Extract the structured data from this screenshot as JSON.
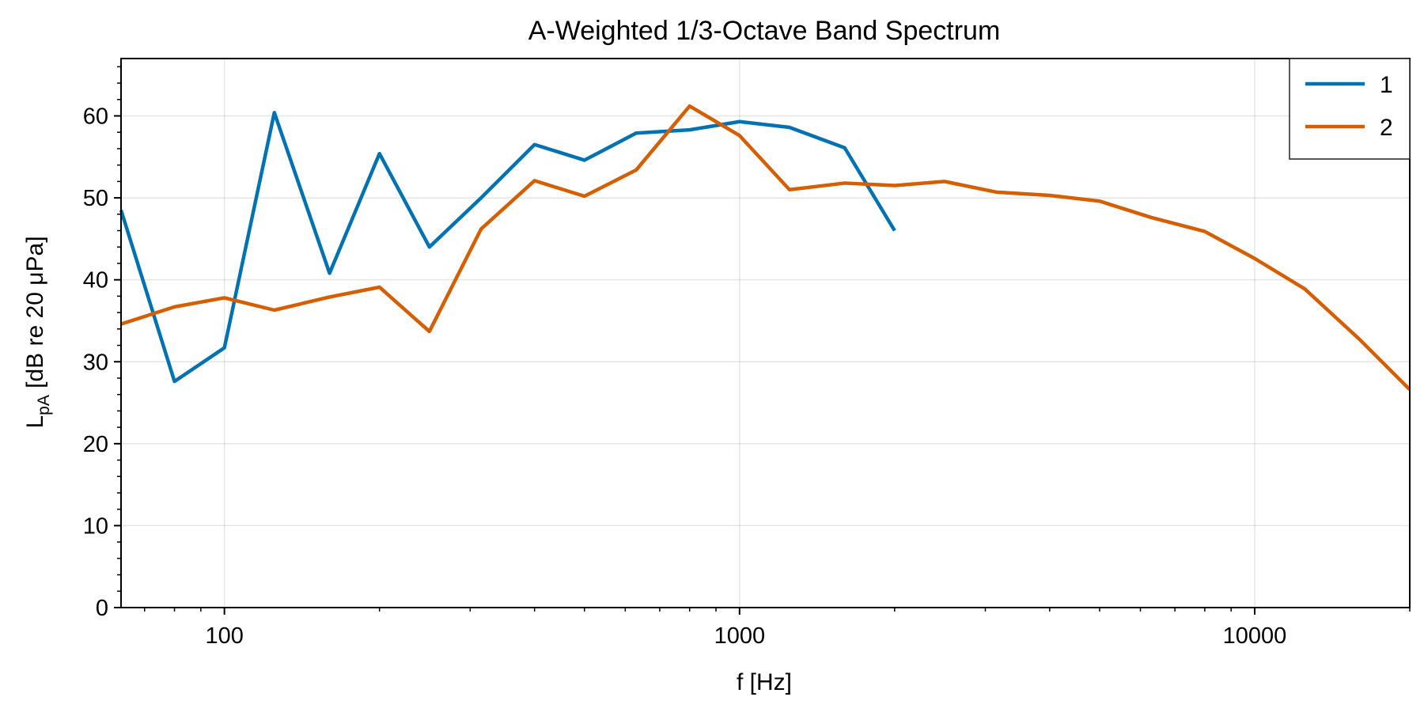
{
  "chart_data": {
    "type": "line",
    "title": "A-Weighted 1/3-Octave Band Spectrum",
    "xlabel": "f [Hz]",
    "ylabel_main": "L",
    "ylabel_sub": "pA",
    "ylabel_rest": " [dB re 20 μPa]",
    "xscale": "log",
    "xlim": [
      63,
      20000
    ],
    "ylim": [
      0,
      67
    ],
    "xticks": [
      100,
      1000,
      10000
    ],
    "xtick_labels": [
      "100",
      "1000",
      "10000"
    ],
    "yticks": [
      0,
      10,
      20,
      30,
      40,
      50,
      60
    ],
    "ytick_labels": [
      "0",
      "10",
      "20",
      "30",
      "40",
      "50",
      "60"
    ],
    "grid": true,
    "legend_position": "top-right",
    "series": [
      {
        "name": "1",
        "color": "#0072b2",
        "x": [
          63,
          80,
          100,
          125,
          160,
          200,
          250,
          315,
          400,
          500,
          630,
          800,
          1000,
          1250,
          1600,
          2000
        ],
        "y": [
          48.5,
          27.6,
          31.7,
          60.4,
          40.8,
          55.4,
          44.0,
          50.0,
          56.5,
          54.6,
          57.9,
          58.3,
          59.3,
          58.6,
          56.1,
          46.0
        ]
      },
      {
        "name": "2",
        "color": "#d55e00",
        "x": [
          63,
          80,
          100,
          125,
          160,
          200,
          250,
          315,
          400,
          500,
          630,
          800,
          1000,
          1250,
          1600,
          2000,
          2500,
          3150,
          4000,
          5000,
          6300,
          8000,
          10000,
          12500,
          16000,
          20000
        ],
        "y": [
          34.6,
          36.7,
          37.8,
          36.3,
          37.9,
          39.1,
          33.7,
          46.2,
          52.1,
          50.2,
          53.4,
          61.2,
          57.6,
          51.0,
          51.8,
          51.5,
          52.0,
          50.7,
          50.3,
          49.6,
          47.6,
          45.9,
          42.6,
          38.9,
          32.7,
          26.6
        ]
      }
    ]
  }
}
